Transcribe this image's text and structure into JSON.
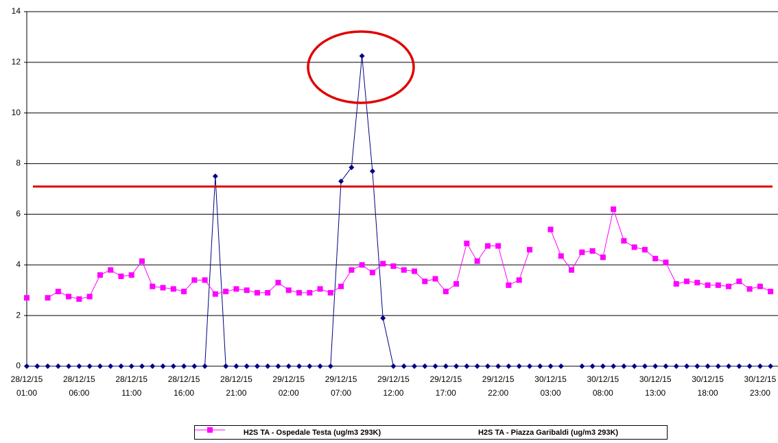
{
  "chart_data": {
    "type": "line",
    "categories": [
      "28/12/15\n01:00",
      null,
      null,
      null,
      null,
      "28/12/15\n06:00",
      null,
      null,
      null,
      null,
      "28/12/15\n11:00",
      null,
      null,
      null,
      null,
      "28/12/15\n16:00",
      null,
      null,
      null,
      null,
      "28/12/15\n21:00",
      null,
      null,
      null,
      null,
      "29/12/15\n02:00",
      null,
      null,
      null,
      null,
      "29/12/15\n07:00",
      null,
      null,
      null,
      null,
      "29/12/15\n12:00",
      null,
      null,
      null,
      null,
      "29/12/15\n17:00",
      null,
      null,
      null,
      null,
      "29/12/15\n22:00",
      null,
      null,
      null,
      null,
      "30/12/15\n03:00",
      null,
      null,
      null,
      null,
      "30/12/15\n08:00",
      null,
      null,
      null,
      null,
      "30/12/15\n13:00",
      null,
      null,
      null,
      null,
      "30/12/15\n18:00",
      null,
      null,
      null,
      null,
      "30/12/15\n23:00",
      null
    ],
    "series": [
      {
        "name": "H2S TA - Ospedale Testa (ug/m3 293K)",
        "color": "#000080",
        "marker": "diamond",
        "values": [
          0,
          0,
          0,
          0,
          0,
          0,
          0,
          0,
          0,
          0,
          0,
          0,
          0,
          0,
          0,
          0,
          0,
          0,
          7.5,
          0,
          0,
          0,
          0,
          0,
          0,
          0,
          0,
          0,
          0,
          0,
          7.3,
          7.85,
          12.25,
          7.7,
          1.9,
          0,
          0,
          0,
          0,
          0,
          0,
          0,
          0,
          0,
          0,
          0,
          0,
          0,
          0,
          0,
          0,
          0,
          null,
          0,
          0,
          0,
          0,
          0,
          0,
          0,
          0,
          0,
          0,
          0,
          0,
          0,
          0,
          0,
          0,
          0,
          0,
          0
        ]
      },
      {
        "name": "H2S TA - Piazza Garibaldi (ug/m3 293K)",
        "color": "#ff00ff",
        "marker": "square",
        "values": [
          2.7,
          null,
          2.7,
          2.95,
          2.75,
          2.65,
          2.75,
          3.6,
          3.8,
          3.55,
          3.6,
          4.15,
          3.15,
          3.1,
          3.05,
          2.95,
          3.4,
          3.4,
          2.85,
          2.95,
          3.05,
          3.0,
          2.9,
          2.9,
          3.3,
          3.0,
          2.9,
          2.9,
          3.05,
          2.9,
          3.15,
          3.8,
          4.0,
          3.7,
          4.05,
          3.95,
          3.8,
          3.75,
          3.35,
          3.45,
          2.95,
          3.25,
          4.85,
          4.15,
          4.75,
          4.75,
          3.2,
          3.4,
          4.6,
          null,
          5.4,
          4.35,
          3.8,
          4.5,
          4.55,
          4.3,
          6.2,
          4.95,
          4.7,
          4.6,
          4.25,
          4.1,
          3.25,
          3.35,
          3.3,
          3.2,
          3.2,
          3.15,
          3.35,
          3.05,
          3.15,
          2.95
        ]
      }
    ],
    "ylim": [
      0,
      14
    ],
    "yticks": [
      0,
      2,
      4,
      6,
      8,
      10,
      12,
      14
    ],
    "grid": true
  }
}
